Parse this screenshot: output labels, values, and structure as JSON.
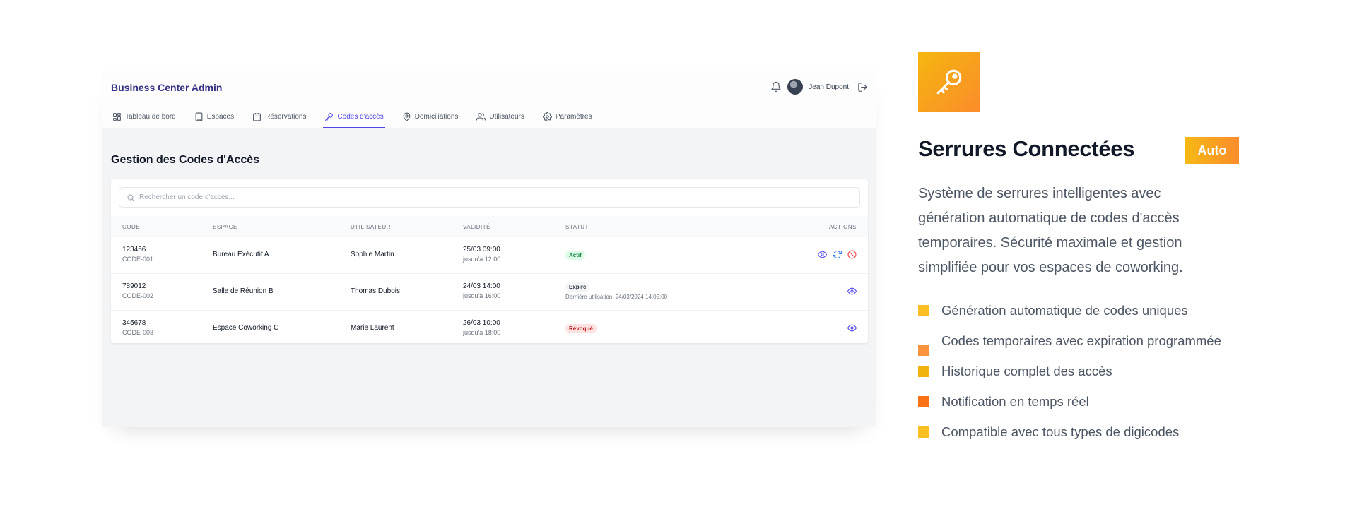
{
  "app": {
    "brand": "Business Center Admin",
    "user_name": "Jean Dupont",
    "nav": [
      {
        "label": "Tableau de bord",
        "icon": "dashboard-icon"
      },
      {
        "label": "Espaces",
        "icon": "building-icon"
      },
      {
        "label": "Réservations",
        "icon": "calendar-icon"
      },
      {
        "label": "Codes d'accès",
        "icon": "key-icon",
        "active": true
      },
      {
        "label": "Domiciliations",
        "icon": "map-pin-icon"
      },
      {
        "label": "Utilisateurs",
        "icon": "users-icon"
      },
      {
        "label": "Paramètres",
        "icon": "gear-icon"
      }
    ],
    "page_title": "Gestion des Codes d'Accès",
    "search_placeholder": "Rechercher un code d'accès...",
    "columns": {
      "code": "CODE",
      "espace": "ESPACE",
      "utilisateur": "UTILISATEUR",
      "validite": "VALIDITÉ",
      "statut": "STATUT",
      "actions": "ACTIONS"
    },
    "rows": [
      {
        "code": "123456",
        "code_id": "CODE-001",
        "espace": "Bureau Exécutif A",
        "utilisateur": "Sophie Martin",
        "validite_start": "25/03 09:00",
        "validite_end": "jusqu'à 12:00",
        "statut": "Actif",
        "last_use": "",
        "actions": [
          "view",
          "regenerate",
          "revoke"
        ]
      },
      {
        "code": "789012",
        "code_id": "CODE-002",
        "espace": "Salle de Réunion B",
        "utilisateur": "Thomas Dubois",
        "validite_start": "24/03 14:00",
        "validite_end": "jusqu'à 16:00",
        "statut": "Expiré",
        "last_use": "Dernière utilisation: 24/03/2024 14:05:00",
        "actions": [
          "view"
        ]
      },
      {
        "code": "345678",
        "code_id": "CODE-003",
        "espace": "Espace Coworking C",
        "utilisateur": "Marie Laurent",
        "validite_start": "26/03 10:00",
        "validite_end": "jusqu'à 18:00",
        "statut": "Révoqué",
        "last_use": "",
        "actions": [
          "view"
        ]
      }
    ],
    "colors": {
      "accent": "#4f46e5",
      "brand": "#312e81",
      "danger": "#ef4444"
    }
  },
  "feature": {
    "icon": "key-icon",
    "title": "Serrures Connectées",
    "badge": "Auto",
    "description": "Système de serrures intelligentes avec génération automatique de codes d'accès temporaires. Sécurité maximale et gestion simplifiée pour vos espaces de coworking.",
    "items": [
      {
        "text": "Génération automatique de codes uniques",
        "color": "#fbbf24"
      },
      {
        "text": "Codes temporaires avec expiration programmée",
        "color": "#fb923c"
      },
      {
        "text": "Historique complet des accès",
        "color": "#f0b20c"
      },
      {
        "text": "Notification en temps réel",
        "color": "#f97316"
      },
      {
        "text": "Compatible avec tous types de digicodes",
        "color": "#fbbf24"
      }
    ],
    "colors": {
      "gradient_start": "#f5b70f",
      "gradient_end": "#fb8c2b"
    }
  }
}
